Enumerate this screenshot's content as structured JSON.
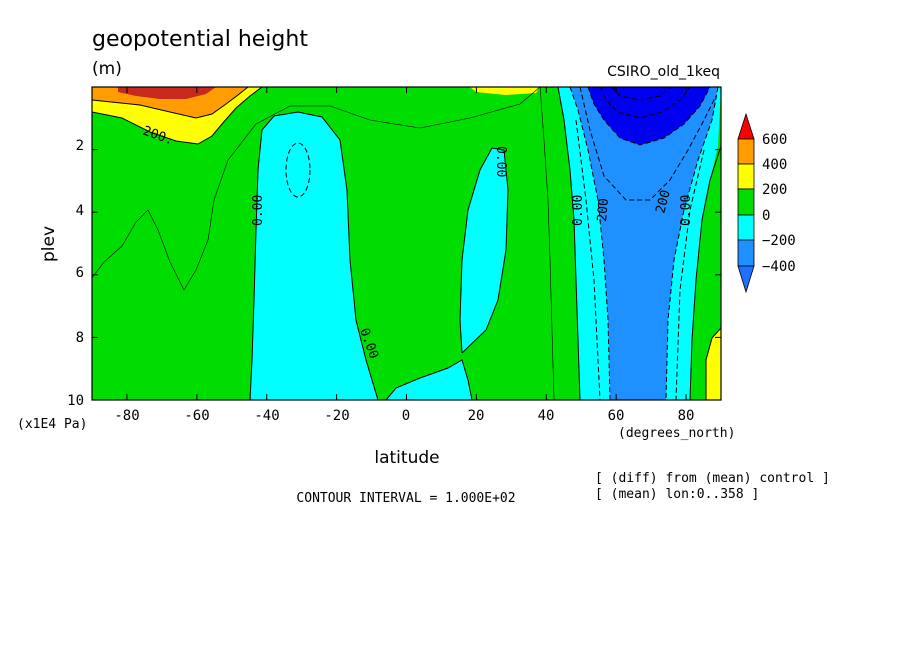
{
  "chart_data": {
    "type": "heatmap",
    "plot_kind": "filled contour (latitude vs pressure level)",
    "title": "geopotential height",
    "units": "(m)",
    "dataset": "CSIRO_old_1keq",
    "xlabel": "latitude",
    "xunits": "(degrees_north)",
    "ylabel": "plev",
    "yunits": "(x1E4 Pa)",
    "xlim": [
      -90,
      90
    ],
    "ylim": [
      10,
      0
    ],
    "y_reversed": true,
    "xticks": [
      -80,
      -60,
      -40,
      -20,
      0,
      20,
      40,
      60,
      80
    ],
    "yticks": [
      2,
      4,
      6,
      8,
      10
    ],
    "contour_interval_text": "CONTOUR INTERVAL = 1.000E+02",
    "notes": [
      "[ (diff) from (mean) control ]",
      "[ (mean) lon:0..358 ]"
    ],
    "colorbar": {
      "labels": [
        "600",
        "400",
        "200",
        "0",
        "−200",
        "−400"
      ],
      "colors": [
        "#ff0000",
        "#ff9d00",
        "#ffff00",
        "#00dd00",
        "#00ffff",
        "#1e90ff",
        "#0000ff"
      ],
      "bounds": [
        -400,
        -200,
        0,
        200,
        400,
        600
      ]
    },
    "contour_labels": [
      {
        "text": "200.",
        "lat": -76,
        "plev": 1.7
      },
      {
        "text": "0.00",
        "lat": -44,
        "plev": 3.9
      },
      {
        "text": "0.00",
        "lat": -12,
        "plev": 8.5
      },
      {
        "text": "0.00",
        "lat": 28,
        "plev": 2.5
      },
      {
        "text": "0.00",
        "lat": 48,
        "plev": 4.0
      },
      {
        "text": "200",
        "lat": 55,
        "plev": 3.9
      },
      {
        "text": "200",
        "lat": 74,
        "plev": 3.7
      },
      {
        "text": "0.00",
        "lat": 83,
        "plev": 3.9
      }
    ]
  }
}
